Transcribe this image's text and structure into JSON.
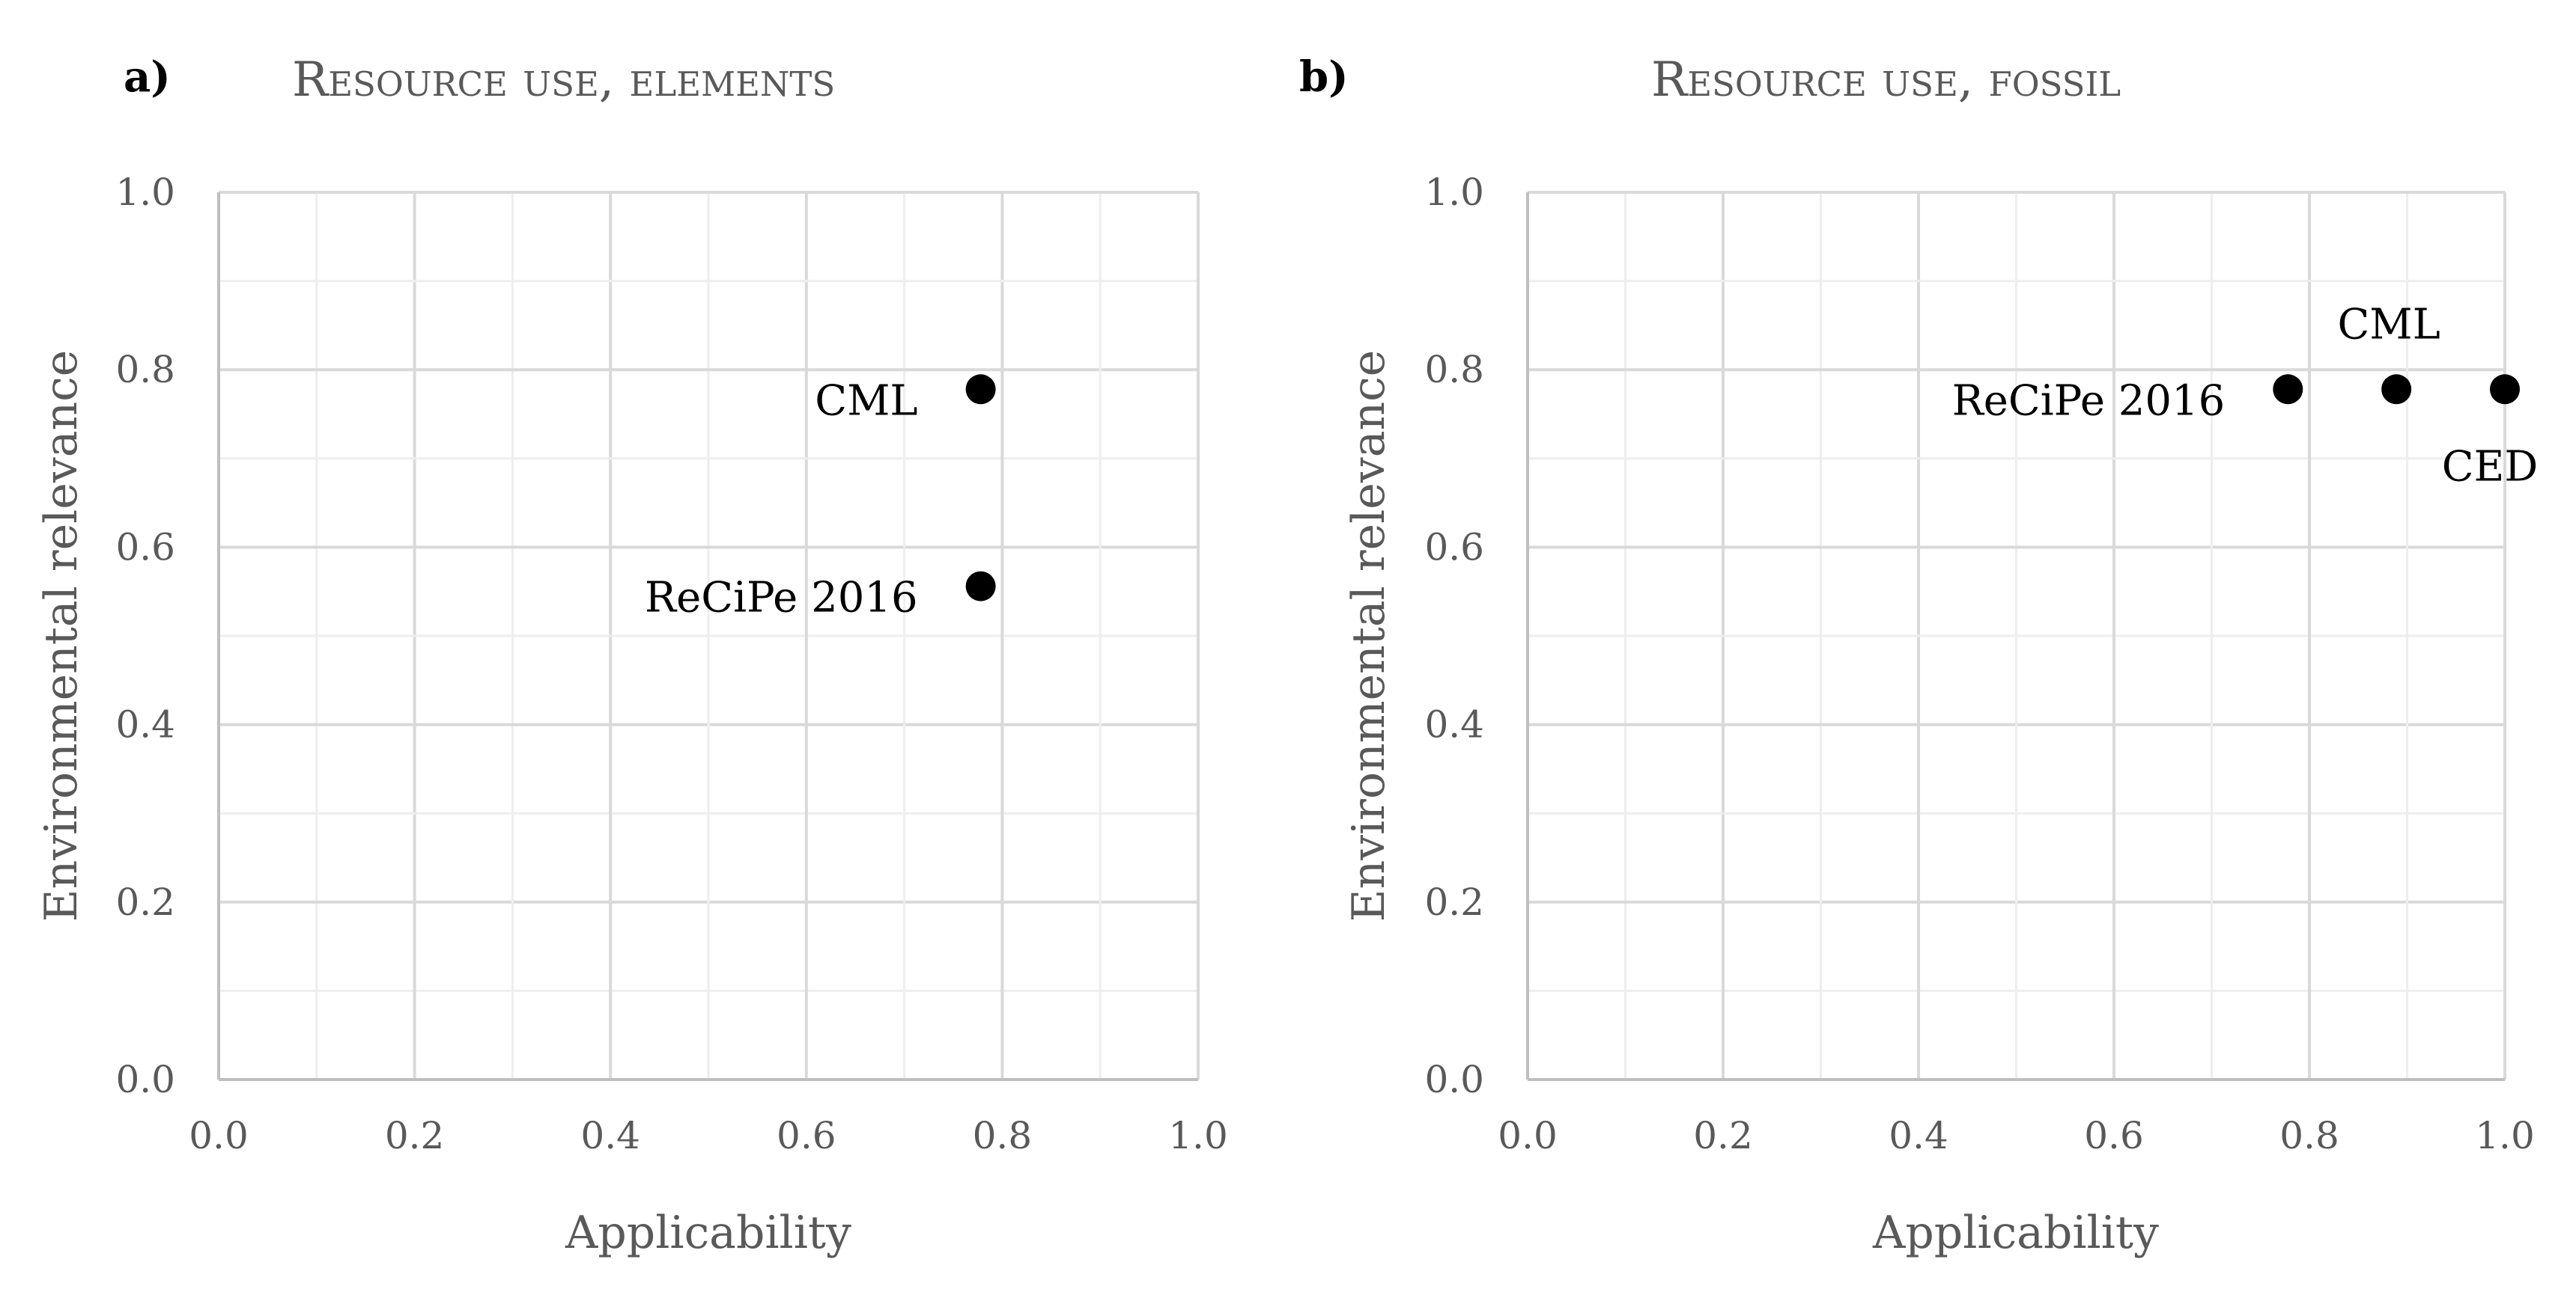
{
  "chart_data": [
    {
      "panel": "a)",
      "type": "scatter",
      "title": "Resource use, elements",
      "xlabel": "Applicability",
      "ylabel": "Environmental relevance",
      "xlim": [
        0,
        1
      ],
      "ylim": [
        0,
        1
      ],
      "xticks": [
        "0.0",
        "0.2",
        "0.4",
        "0.6",
        "0.8",
        "1.0"
      ],
      "yticks": [
        "0.0",
        "0.2",
        "0.4",
        "0.6",
        "0.8",
        "1.0"
      ],
      "grid": "major and minor",
      "marker_color": "#000000",
      "points": [
        {
          "label": "CML",
          "x": 0.778,
          "y": 0.778,
          "label_position": "left"
        },
        {
          "label": "ReCiPe 2016",
          "x": 0.778,
          "y": 0.556,
          "label_position": "left"
        }
      ]
    },
    {
      "panel": "b)",
      "type": "scatter",
      "title": "Resource use, fossil",
      "xlabel": "Applicability",
      "ylabel": "Environmental relevance",
      "xlim": [
        0,
        1
      ],
      "ylim": [
        0,
        1
      ],
      "xticks": [
        "0.0",
        "0.2",
        "0.4",
        "0.6",
        "0.8",
        "1.0"
      ],
      "yticks": [
        "0.0",
        "0.2",
        "0.4",
        "0.6",
        "0.8",
        "1.0"
      ],
      "grid": "major and minor",
      "marker_color": "#000000",
      "points": [
        {
          "label": "ReCiPe 2016",
          "x": 0.778,
          "y": 0.778,
          "label_position": "left"
        },
        {
          "label": "CML",
          "x": 0.889,
          "y": 0.778,
          "label_position": "above"
        },
        {
          "label": "CED",
          "x": 1.0,
          "y": 0.778,
          "label_position": "below"
        }
      ]
    }
  ]
}
